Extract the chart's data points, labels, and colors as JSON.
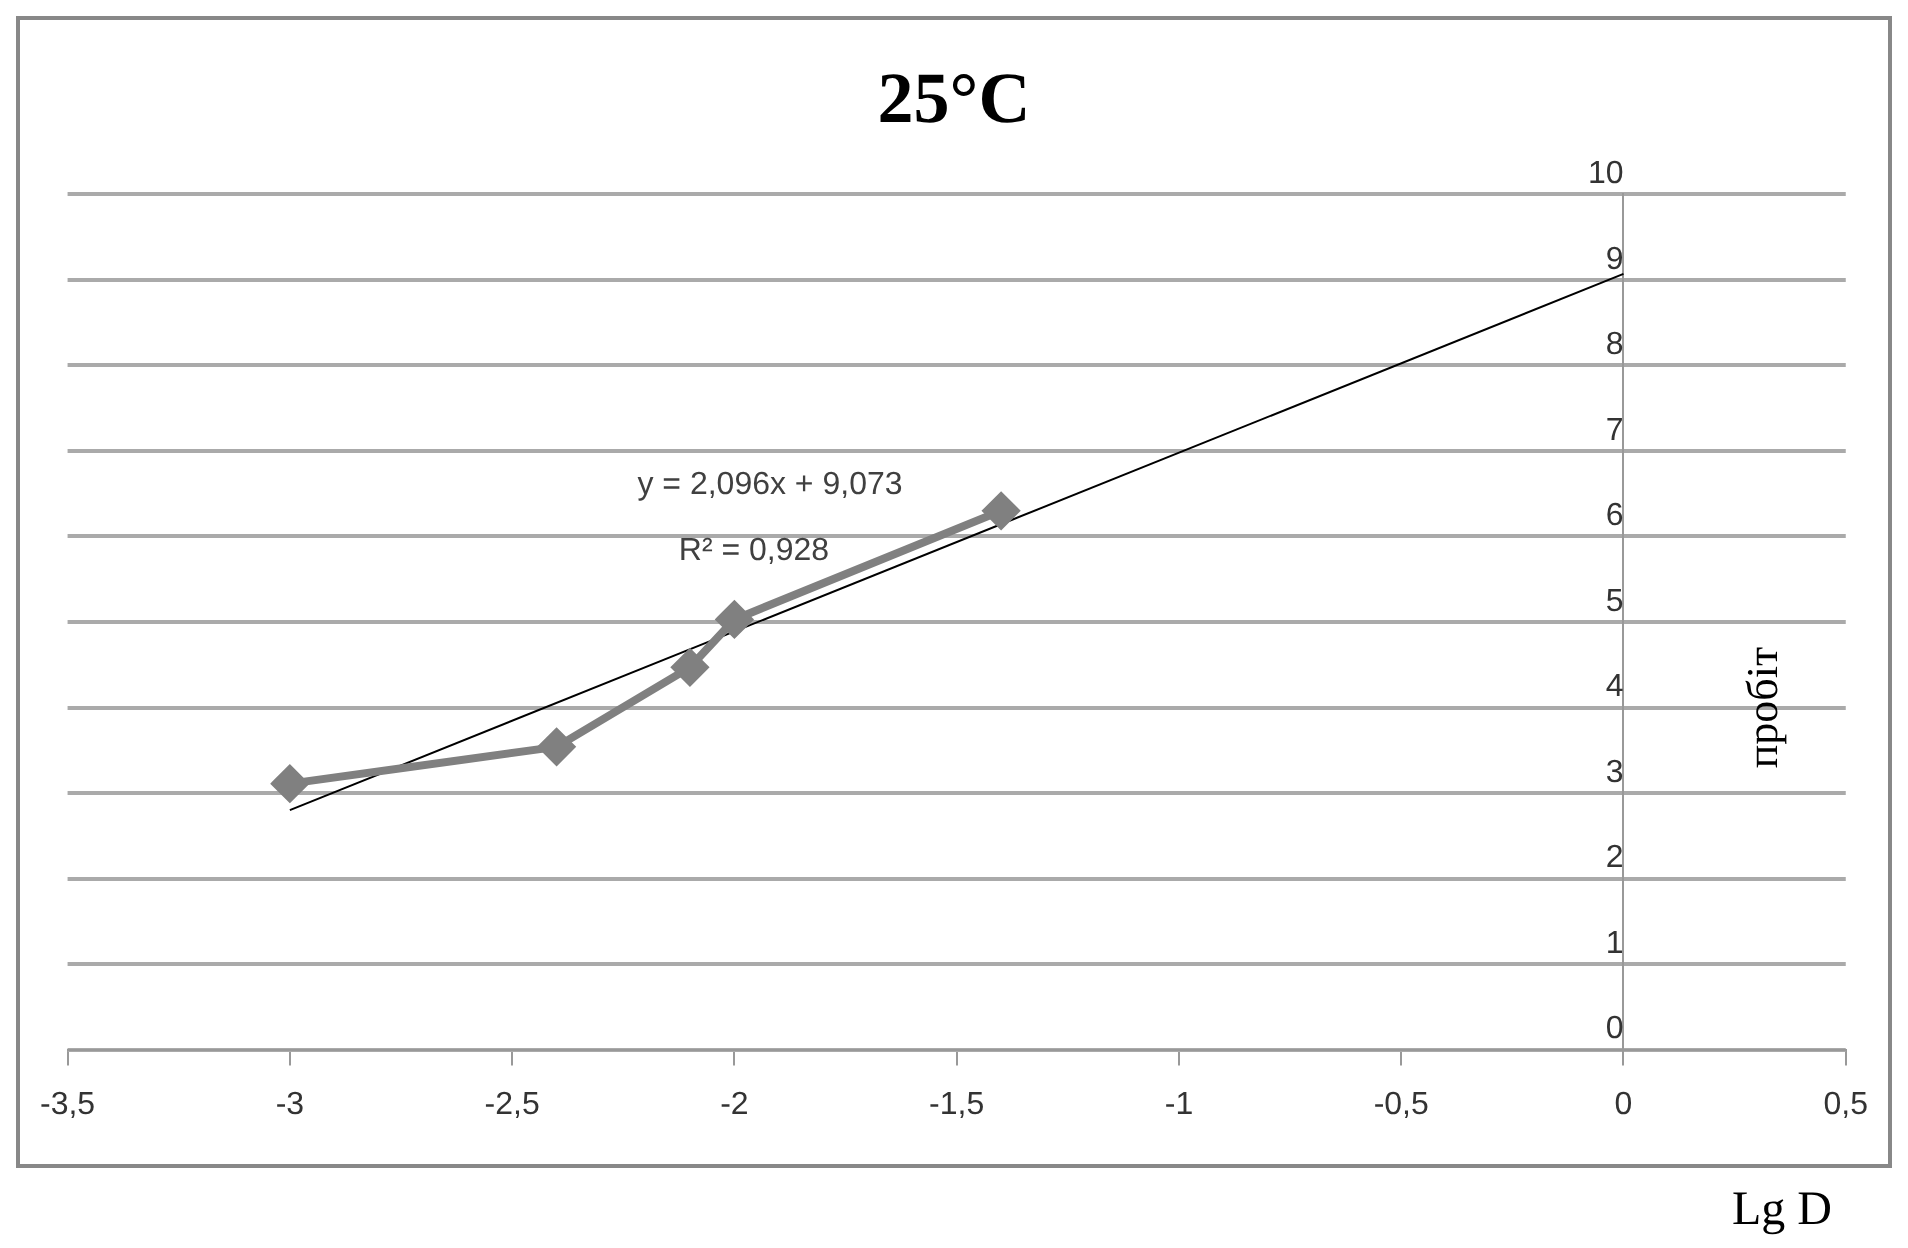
{
  "chart_data": {
    "type": "line",
    "title": "25°C",
    "xlabel": "Lg D",
    "ylabel": "пробіт",
    "x": [
      -3,
      -2.4,
      -2.1,
      -2,
      -1.4
    ],
    "series": [
      {
        "color": "#808080",
        "values": [
          3.11,
          3.54,
          4.47,
          5.03,
          6.3
        ],
        "marker": "diamond"
      },
      {
        "type": "line",
        "color": "#000000",
        "x": [
          -3,
          0
        ],
        "values": [
          2.8,
          9.07
        ],
        "marker": "none"
      }
    ],
    "xlim": [
      -3.5,
      0.5
    ],
    "xticks": [
      {
        "value": -3.5,
        "label": "-3,5"
      },
      -3,
      {
        "value": -2.5,
        "label": "-2,5"
      },
      -2,
      {
        "value": -1.5,
        "label": "-1,5"
      },
      -1,
      {
        "value": -0.5,
        "label": "-0,5"
      },
      0,
      {
        "value": 0.5,
        "label": "0,5"
      }
    ],
    "ylim": [
      0,
      10
    ],
    "yticks": [
      0,
      1,
      2,
      3,
      4,
      5,
      6,
      7,
      8,
      9,
      10
    ],
    "grid": "y",
    "legend": false,
    "line_style": "solid",
    "annotations": [
      "y = 2,096x + 9,073",
      "R² = 0,928"
    ]
  }
}
